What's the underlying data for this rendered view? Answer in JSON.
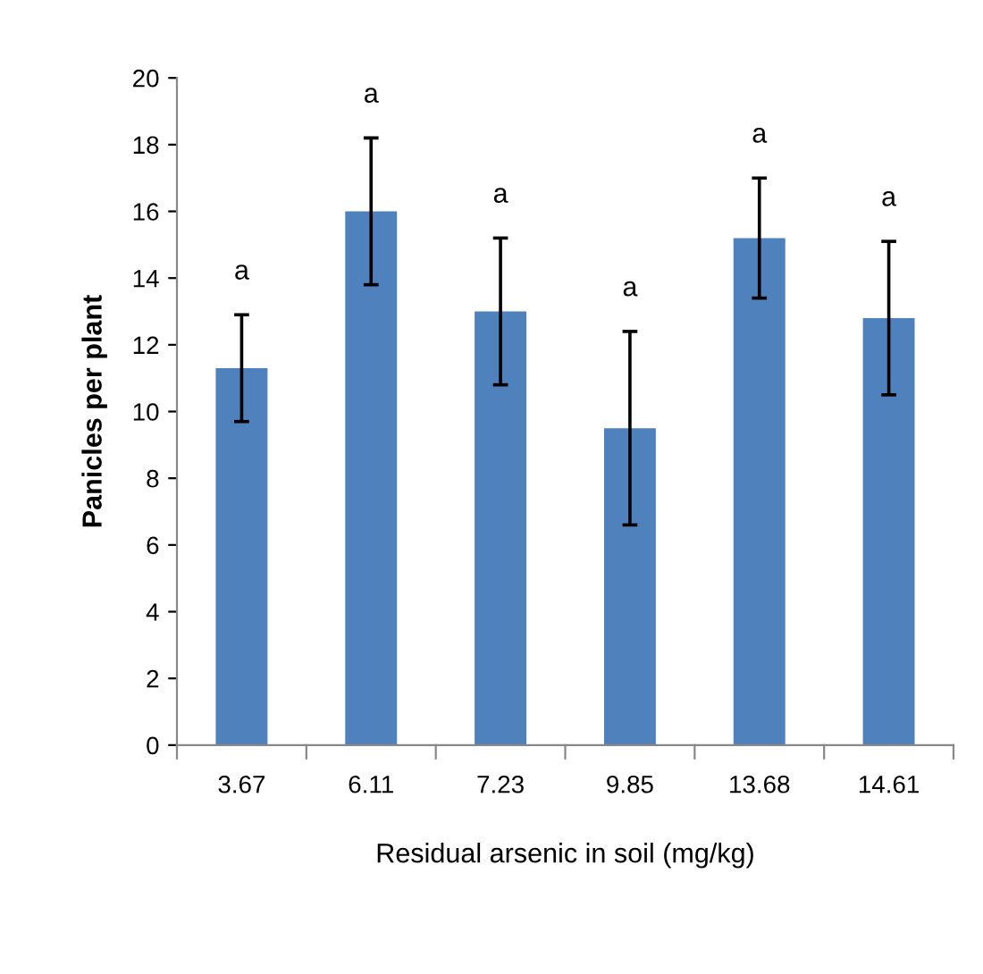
{
  "chart_data": {
    "type": "bar",
    "xlabel": "Residual arsenic in soil (mg/kg)",
    "ylabel": "Panicles per plant",
    "categories": [
      "3.67",
      "6.11",
      "7.23",
      "9.85",
      "13.68",
      "14.61"
    ],
    "values": [
      11.3,
      16.0,
      13.0,
      9.5,
      15.2,
      12.8
    ],
    "errors": [
      1.6,
      2.2,
      2.2,
      2.9,
      1.8,
      2.3
    ],
    "color": "#4f81bd",
    "ylim": [
      0,
      20
    ],
    "yticks": [
      0,
      2,
      4,
      6,
      8,
      10,
      12,
      14,
      16,
      18,
      20
    ],
    "grid": false,
    "annotations": [
      "a",
      "a",
      "a",
      "a",
      "a",
      "a"
    ]
  }
}
